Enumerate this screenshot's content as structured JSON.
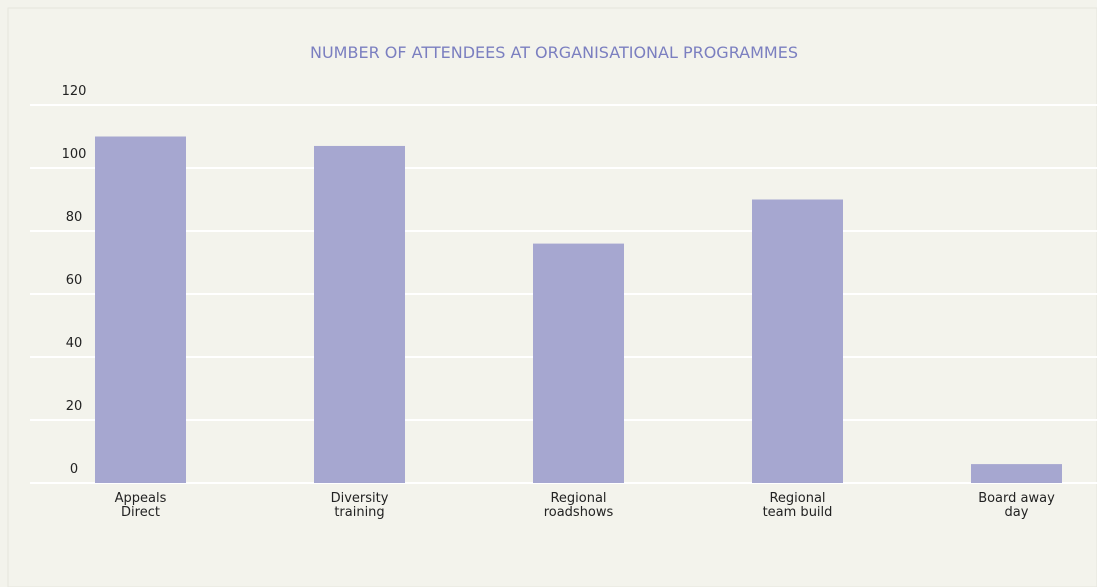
{
  "chart_data": {
    "type": "bar",
    "title": "NUMBER OF ATTENDEES AT ORGANISATIONAL PROGRAMMES",
    "categories": [
      "Appeals Direct",
      "Diversity training",
      "Regional roadshows",
      "Regional team build",
      "Board away day"
    ],
    "values": [
      110,
      107,
      76,
      90,
      6
    ],
    "color": "#a6a7d0",
    "ylim": [
      0,
      120
    ],
    "yticks": [
      0,
      20,
      40,
      60,
      80,
      100,
      120
    ],
    "grid": true
  }
}
